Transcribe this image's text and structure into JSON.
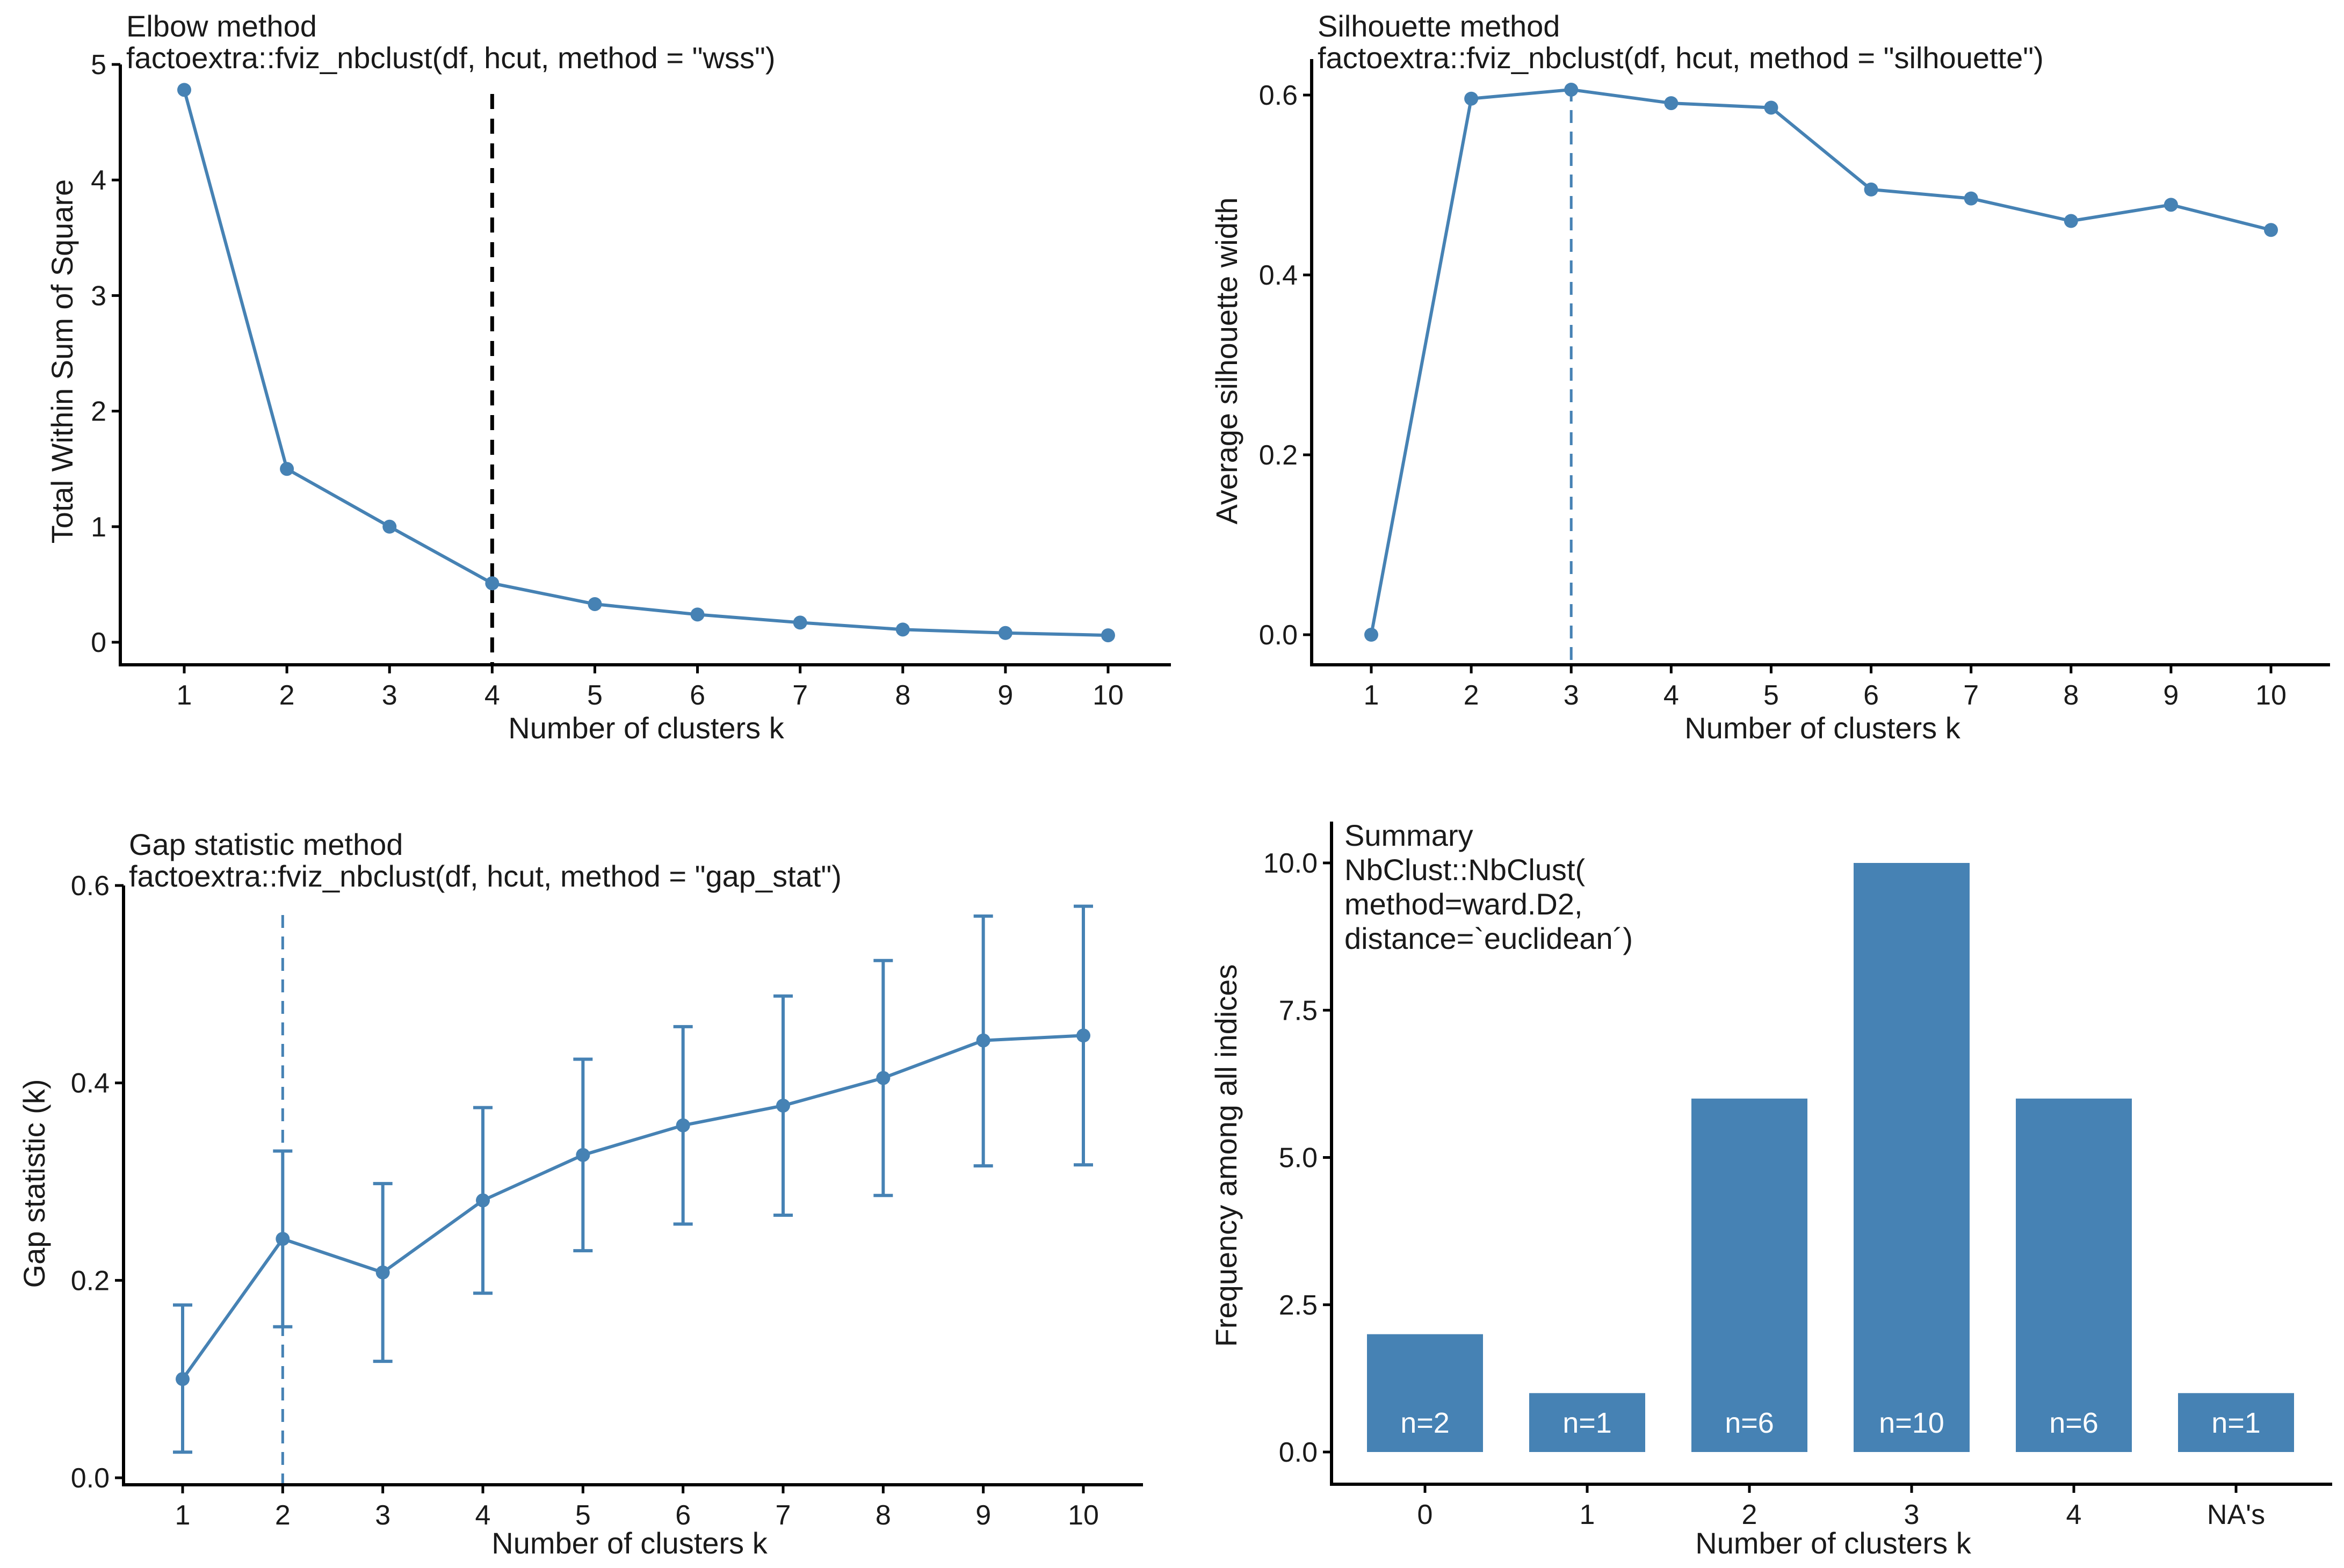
{
  "colors": {
    "accent": "#4682B4",
    "black": "#000000"
  },
  "panels": [
    {
      "id": "elbow",
      "title": "Elbow method",
      "subtitle": "factoextra::fviz_nbclust(df, hcut, method = \"wss\")",
      "xlabel": "Number of clusters k",
      "ylabel": "Total Within Sum of Square",
      "y_ticks": [
        "0",
        "1",
        "2",
        "3",
        "4",
        "5"
      ],
      "x_ticks": [
        "1",
        "2",
        "3",
        "4",
        "5",
        "6",
        "7",
        "8",
        "9",
        "10"
      ]
    },
    {
      "id": "silhouette",
      "title": "Silhouette method",
      "subtitle": "factoextra::fviz_nbclust(df, hcut, method = \"silhouette\")",
      "xlabel": "Number of clusters k",
      "ylabel": "Average silhouette width",
      "y_ticks": [
        "0.0",
        "0.2",
        "0.4",
        "0.6"
      ],
      "x_ticks": [
        "1",
        "2",
        "3",
        "4",
        "5",
        "6",
        "7",
        "8",
        "9",
        "10"
      ]
    },
    {
      "id": "gap",
      "title": "Gap statistic method",
      "subtitle": "factoextra::fviz_nbclust(df, hcut, method = \"gap_stat\")",
      "xlabel": "Number of clusters k",
      "ylabel": "Gap statistic (k)",
      "y_ticks": [
        "0.0",
        "0.2",
        "0.4",
        "0.6"
      ],
      "x_ticks": [
        "1",
        "2",
        "3",
        "4",
        "5",
        "6",
        "7",
        "8",
        "9",
        "10"
      ]
    },
    {
      "id": "summary",
      "title_lines": [
        "Summary",
        "NbClust::NbClust(",
        "method=ward.D2,",
        "distance=`euclidean´)"
      ],
      "xlabel": "Number of clusters k",
      "ylabel": "Frequency among all indices",
      "y_ticks": [
        "0.0",
        "2.5",
        "5.0",
        "7.5",
        "10.0"
      ],
      "x_ticks": [
        "0",
        "1",
        "2",
        "3",
        "4",
        "NA's"
      ]
    }
  ],
  "chart_data": [
    {
      "type": "line",
      "x": [
        1,
        2,
        3,
        4,
        5,
        6,
        7,
        8,
        9,
        10
      ],
      "y": [
        4.78,
        1.5,
        1.0,
        0.51,
        0.33,
        0.24,
        0.17,
        0.11,
        0.08,
        0.06
      ],
      "xlim": [
        1,
        10
      ],
      "ylim": [
        0,
        5
      ],
      "optimal_k": 4,
      "reference_line": "dashed vertical at k = 4 (black)",
      "grid": false
    },
    {
      "type": "line",
      "x": [
        1,
        2,
        3,
        4,
        5,
        6,
        7,
        8,
        9,
        10
      ],
      "y": [
        0.0,
        0.596,
        0.606,
        0.591,
        0.586,
        0.495,
        0.485,
        0.46,
        0.478,
        0.45
      ],
      "xlim": [
        1,
        10
      ],
      "ylim": [
        0,
        0.6
      ],
      "optimal_k": 3,
      "reference_line": "dashed vertical at k = 3 (steelblue)",
      "grid": false
    },
    {
      "type": "line",
      "x": [
        1,
        2,
        3,
        4,
        5,
        6,
        7,
        8,
        9,
        10
      ],
      "y": [
        0.1,
        0.242,
        0.208,
        0.281,
        0.327,
        0.357,
        0.377,
        0.405,
        0.443,
        0.448
      ],
      "ymin": [
        0.026,
        0.153,
        0.118,
        0.187,
        0.23,
        0.257,
        0.266,
        0.286,
        0.316,
        0.317
      ],
      "ymax": [
        0.175,
        0.331,
        0.298,
        0.375,
        0.424,
        0.457,
        0.488,
        0.524,
        0.569,
        0.579
      ],
      "xlim": [
        1,
        10
      ],
      "ylim": [
        0,
        0.6
      ],
      "optimal_k": 2,
      "reference_line": "dashed vertical at k = 2 (steelblue)",
      "grid": false
    },
    {
      "type": "bar",
      "categories": [
        "0",
        "1",
        "2",
        "3",
        "4",
        "NA's"
      ],
      "values": [
        2,
        1,
        6,
        10,
        6,
        1
      ],
      "labels": [
        "n=2",
        "n=1",
        "n=6",
        "n=10",
        "n=6",
        "n=1"
      ],
      "ylim": [
        0,
        10
      ],
      "grid": false
    }
  ]
}
